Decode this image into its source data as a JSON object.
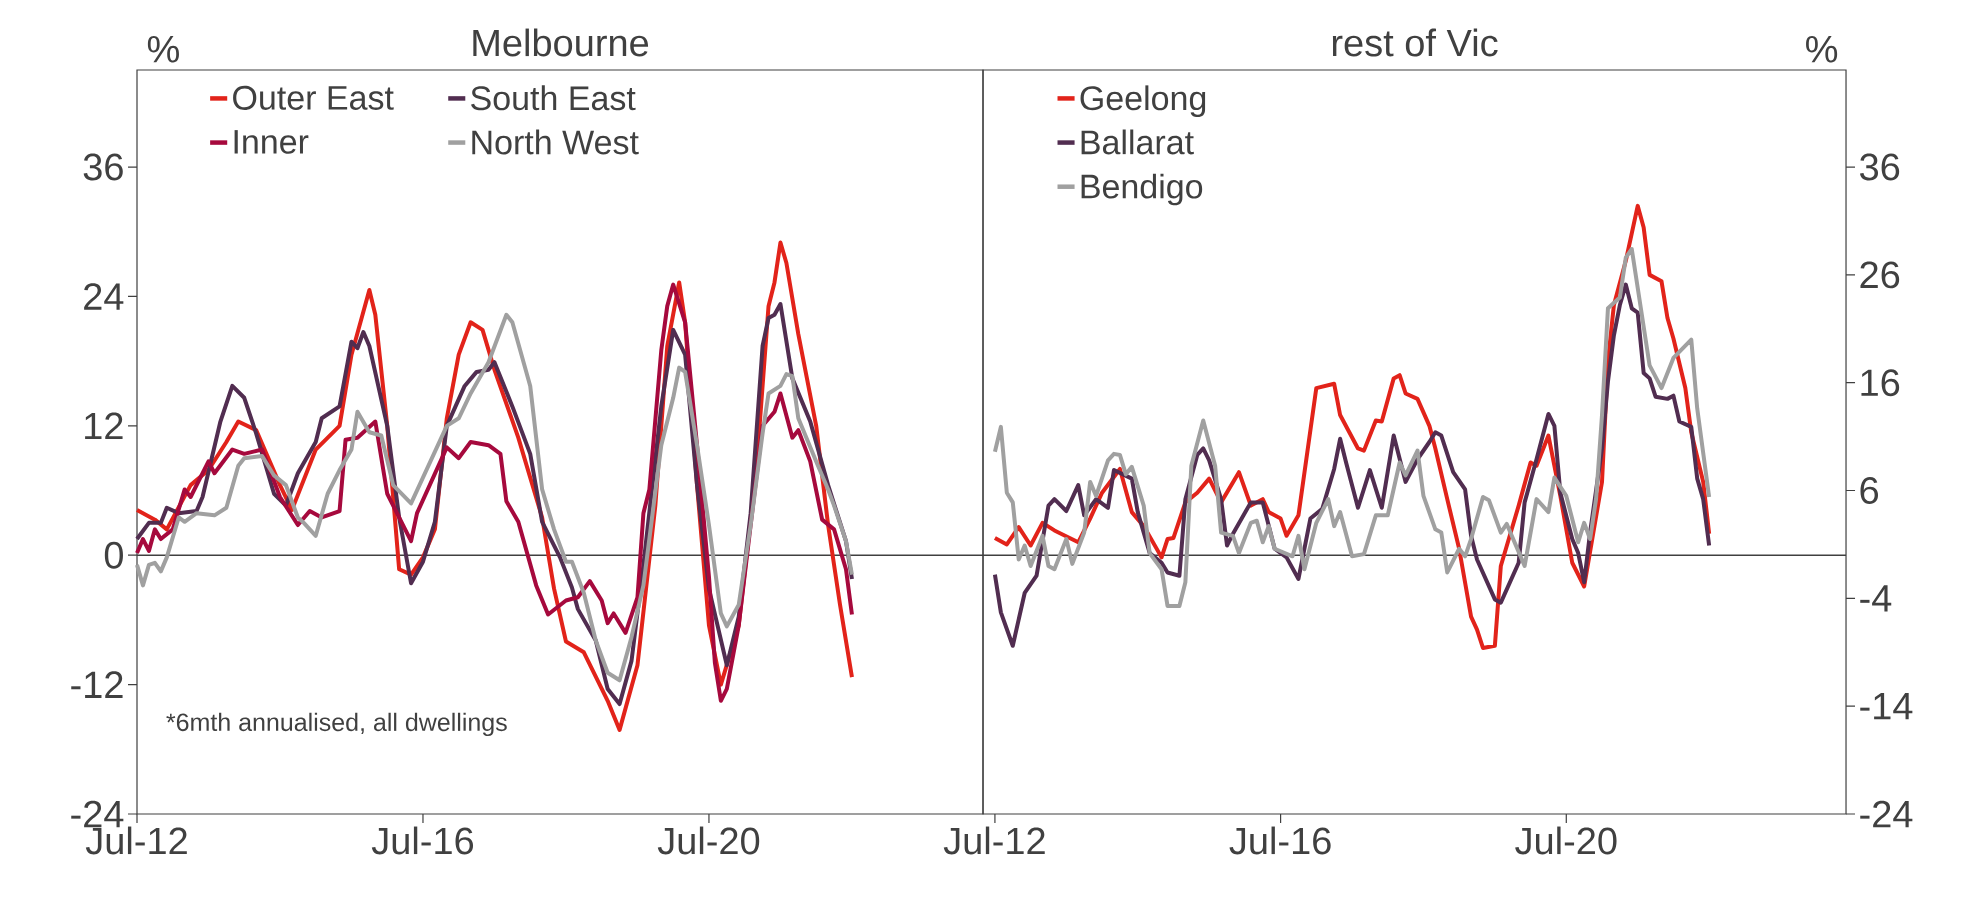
{
  "chart_data": [
    {
      "type": "line",
      "title": "Melbourne",
      "ylabel": "%",
      "marker": "none",
      "legend": "top left",
      "xlim": [
        "2012-07",
        "2024-05"
      ],
      "ylim": [
        -24,
        45
      ],
      "xticks": [
        {
          "value": "2012-07",
          "label": "Jul-12"
        },
        {
          "value": "2016-07",
          "label": "Jul-16"
        },
        {
          "value": "2020-07",
          "label": "Jul-20"
        }
      ],
      "yticks": [
        -24,
        -12,
        0,
        12,
        24,
        36
      ],
      "ref_lines": [
        {
          "axis": "y",
          "value": 0,
          "color": "#404040"
        }
      ],
      "annotations": [
        "*6mth annualised, all dwellings"
      ],
      "series": [
        {
          "name": "Outer East",
          "color": "#e2231a",
          "x": [
            "2012-07",
            "2012-10",
            "2012-12",
            "2013-04",
            "2013-07",
            "2013-10",
            "2013-12",
            "2014-03",
            "2014-07",
            "2014-09",
            "2015-01",
            "2015-05",
            "2015-07",
            "2015-10",
            "2015-11",
            "2016-01",
            "2016-03",
            "2016-05",
            "2016-07",
            "2016-09",
            "2016-11",
            "2017-01",
            "2017-03",
            "2017-05",
            "2017-07",
            "2017-11",
            "2018-03",
            "2018-05",
            "2018-07",
            "2018-10",
            "2019-02",
            "2019-04",
            "2019-07",
            "2019-10",
            "2019-12",
            "2020-02",
            "2020-03",
            "2020-05",
            "2020-07",
            "2020-09",
            "2020-12",
            "2021-03",
            "2021-05",
            "2021-06",
            "2021-07",
            "2021-08",
            "2021-10",
            "2022-01",
            "2022-03",
            "2022-05",
            "2022-07"
          ],
          "values": [
            4.2,
            3.3,
            2.4,
            6.5,
            7.9,
            10.5,
            12.4,
            11.6,
            6.5,
            4.2,
            9.8,
            12,
            18.6,
            24.6,
            22.3,
            12,
            -1.3,
            -1.8,
            -0.2,
            2.4,
            12.7,
            18.6,
            21.6,
            20.9,
            17.2,
            10.9,
            3.5,
            -3.1,
            -8,
            -9,
            -13.5,
            -16.2,
            -10.2,
            4.6,
            19.4,
            25.3,
            21.6,
            6.5,
            -6.5,
            -12,
            -6.5,
            8.3,
            23.1,
            25.3,
            29,
            27.1,
            20.5,
            12,
            2.8,
            -4.6,
            -11.3
          ]
        },
        {
          "name": "South East",
          "color": "#512d50",
          "x": [
            "2012-07",
            "2012-09",
            "2012-11",
            "2012-12",
            "2013-02",
            "2013-05",
            "2013-06",
            "2013-09",
            "2013-11",
            "2014-01",
            "2014-03",
            "2014-06",
            "2014-08",
            "2014-10",
            "2015-01",
            "2015-02",
            "2015-05",
            "2015-07",
            "2015-08",
            "2015-09",
            "2015-10",
            "2016-01",
            "2016-03",
            "2016-05",
            "2016-07",
            "2016-09",
            "2016-11",
            "2017-02",
            "2017-04",
            "2017-06",
            "2017-07",
            "2017-10",
            "2018-01",
            "2018-03",
            "2018-06",
            "2018-08",
            "2018-09",
            "2018-12",
            "2019-02",
            "2019-04",
            "2019-06",
            "2019-08",
            "2019-11",
            "2020-01",
            "2020-03",
            "2020-05",
            "2020-07",
            "2020-10",
            "2020-12",
            "2021-02",
            "2021-04",
            "2021-05",
            "2021-06",
            "2021-07",
            "2021-09",
            "2021-12",
            "2022-03",
            "2022-06",
            "2022-07"
          ],
          "values": [
            1.5,
            3,
            3,
            4.4,
            3.9,
            4.1,
            5.4,
            12.4,
            15.7,
            14.6,
            11.3,
            5.7,
            4.6,
            7.6,
            10.5,
            12.7,
            13.8,
            19.8,
            19.2,
            20.7,
            19.4,
            12,
            3.5,
            -2.6,
            -0.6,
            3.1,
            12,
            15.7,
            17,
            17.2,
            17.9,
            13.8,
            9.4,
            3.1,
            -0.2,
            -3,
            -5,
            -7.9,
            -12.4,
            -13.8,
            -9.8,
            -0.9,
            13.8,
            20.9,
            18.6,
            6.5,
            -3.1,
            -10.2,
            -5.7,
            3.9,
            19.4,
            22,
            22.3,
            23.3,
            16.4,
            12.4,
            6.5,
            1.3,
            -2.2
          ]
        },
        {
          "name": "Inner",
          "color": "#a6093d",
          "x": [
            "2012-07",
            "2012-08",
            "2012-09",
            "2012-10",
            "2012-11",
            "2013-01",
            "2013-03",
            "2013-04",
            "2013-07",
            "2013-08",
            "2013-11",
            "2014-01",
            "2014-04",
            "2014-07",
            "2014-10",
            "2014-12",
            "2015-02",
            "2015-05",
            "2015-06",
            "2015-08",
            "2015-11",
            "2016-01",
            "2016-02",
            "2016-05",
            "2016-06",
            "2016-11",
            "2017-01",
            "2017-03",
            "2017-06",
            "2017-08",
            "2017-09",
            "2017-11",
            "2018-02",
            "2018-04",
            "2018-07",
            "2018-09",
            "2018-11",
            "2019-01",
            "2019-02",
            "2019-03",
            "2019-05",
            "2019-07",
            "2019-08",
            "2019-09",
            "2019-11",
            "2019-12",
            "2020-01",
            "2020-03",
            "2020-05",
            "2020-07",
            "2020-08",
            "2020-09",
            "2020-10",
            "2020-12",
            "2021-02",
            "2021-04",
            "2021-06",
            "2021-07",
            "2021-09",
            "2021-10",
            "2021-12",
            "2022-02",
            "2022-04",
            "2022-06",
            "2022-07"
          ],
          "values": [
            0.2,
            1.5,
            0.4,
            2.4,
            1.5,
            2.4,
            6.1,
            5.4,
            8.7,
            7.6,
            9.8,
            9.4,
            9.8,
            5.4,
            2.8,
            4.1,
            3.5,
            4.1,
            10.7,
            10.9,
            12.4,
            5.7,
            4.6,
            1.3,
            3.9,
            10,
            9,
            10.5,
            10.2,
            9.4,
            5,
            3.1,
            -2.8,
            -5.5,
            -4.2,
            -3.9,
            -2.4,
            -4.2,
            -6.3,
            -5.4,
            -7.2,
            -3.9,
            3.9,
            6.1,
            19,
            23.1,
            25.1,
            21.6,
            10.2,
            -2,
            -10,
            -13.5,
            -12.4,
            -6.5,
            2.8,
            12,
            13.3,
            15,
            10.9,
            11.6,
            8.7,
            3.3,
            2.4,
            -1.3,
            -5.5
          ]
        },
        {
          "name": "North West",
          "color": "#a0a0a0",
          "x": [
            "2012-07",
            "2012-08",
            "2012-09",
            "2012-10",
            "2012-11",
            "2012-12",
            "2013-02",
            "2013-03",
            "2013-05",
            "2013-08",
            "2013-10",
            "2013-12",
            "2014-01",
            "2014-04",
            "2014-06",
            "2014-08",
            "2014-10",
            "2014-11",
            "2015-01",
            "2015-03",
            "2015-05",
            "2015-07",
            "2015-08",
            "2015-10",
            "2015-12",
            "2016-02",
            "2016-05",
            "2016-07",
            "2016-11",
            "2017-01",
            "2017-03",
            "2017-06",
            "2017-09",
            "2017-10",
            "2018-01",
            "2018-03",
            "2018-05",
            "2018-07",
            "2018-08",
            "2018-10",
            "2018-12",
            "2019-02",
            "2019-04",
            "2019-06",
            "2019-08",
            "2019-11",
            "2020-01",
            "2020-02",
            "2020-03",
            "2020-05",
            "2020-07",
            "2020-09",
            "2020-10",
            "2020-12",
            "2021-02",
            "2021-04",
            "2021-05",
            "2021-07",
            "2021-08",
            "2021-09",
            "2021-10",
            "2022-01",
            "2022-03",
            "2022-04",
            "2022-06",
            "2022-07"
          ],
          "values": [
            -0.9,
            -2.8,
            -0.9,
            -0.7,
            -1.5,
            -0.2,
            3.5,
            3.1,
            3.9,
            3.7,
            4.4,
            8.3,
            9,
            9.2,
            7.4,
            6.5,
            3.5,
            3,
            1.8,
            5.7,
            7.9,
            9.8,
            13.3,
            11.4,
            11.1,
            6.5,
            4.8,
            7.2,
            12,
            12.7,
            15,
            17.9,
            22.3,
            21.6,
            15.7,
            6.1,
            2.4,
            -0.6,
            -0.6,
            -3.5,
            -7.9,
            -10.9,
            -11.6,
            -7.6,
            -2.8,
            10.2,
            14.6,
            17.4,
            17,
            10.2,
            2.8,
            -5.4,
            -6.6,
            -4.6,
            2.8,
            11.3,
            15,
            15.7,
            16.8,
            16.6,
            12.7,
            8.7,
            6.1,
            4.6,
            1.3,
            -1.8
          ]
        }
      ]
    },
    {
      "type": "line",
      "title": "rest of Vic",
      "y2label": "%",
      "marker": "none",
      "legend": "top left",
      "xlim": [
        "2012-05",
        "2024-06"
      ],
      "y2lim": [
        -24,
        45
      ],
      "xticks": [
        {
          "value": "2012-07",
          "label": "Jul-12"
        },
        {
          "value": "2016-07",
          "label": "Jul-16"
        },
        {
          "value": "2020-07",
          "label": "Jul-20"
        }
      ],
      "y2ticks": [
        -24,
        -14,
        -4,
        6,
        16,
        26,
        36
      ],
      "ref_lines": [
        {
          "axis": "y2",
          "value": 0,
          "color": "#404040"
        }
      ],
      "series": [
        {
          "name": "Geelong",
          "color": "#e2231a",
          "axis": "y2",
          "x": [
            "2012-07",
            "2012-09",
            "2012-11",
            "2013-01",
            "2013-03",
            "2013-05",
            "2013-09",
            "2013-11",
            "2014-01",
            "2014-04",
            "2014-06",
            "2014-08",
            "2014-11",
            "2014-12",
            "2015-01",
            "2015-03",
            "2015-05",
            "2015-07",
            "2015-09",
            "2015-12",
            "2016-02",
            "2016-04",
            "2016-05",
            "2016-07",
            "2016-08",
            "2016-10",
            "2017-01",
            "2017-04",
            "2017-05",
            "2017-08",
            "2017-09",
            "2017-11",
            "2017-12",
            "2018-02",
            "2018-03",
            "2018-04",
            "2018-06",
            "2018-08",
            "2018-09",
            "2018-11",
            "2019-01",
            "2019-03",
            "2019-04",
            "2019-05",
            "2019-07",
            "2019-08",
            "2019-11",
            "2020-01",
            "2020-02",
            "2020-04",
            "2020-06",
            "2020-08",
            "2020-10",
            "2021-01",
            "2021-02",
            "2021-03",
            "2021-05",
            "2021-07",
            "2021-08",
            "2021-09",
            "2021-11",
            "2021-12",
            "2022-01",
            "2022-03",
            "2022-04",
            "2022-06",
            "2022-07"
          ],
          "values": [
            1.6,
            1,
            2.6,
            0.9,
            3,
            2.3,
            1.2,
            3.4,
            5.8,
            8,
            4,
            2.7,
            -0.2,
            1.5,
            1.6,
            4.9,
            5.8,
            7.1,
            4.9,
            7.7,
            4.6,
            5.2,
            4,
            3.4,
            1.8,
            3.7,
            15.5,
            15.9,
            13,
            9.9,
            9.7,
            12.5,
            12.4,
            16.4,
            16.7,
            15,
            14.5,
            12,
            9.9,
            5.2,
            0.6,
            -5.7,
            -6.9,
            -8.6,
            -8.4,
            -1,
            4.6,
            8.6,
            8.3,
            11.1,
            5.5,
            -0.7,
            -2.9,
            6.8,
            18,
            23.2,
            27.3,
            32.4,
            30.4,
            26,
            25.4,
            22,
            20.1,
            15.5,
            11.4,
            6.8,
            2
          ]
        },
        {
          "name": "Ballarat",
          "color": "#512d50",
          "axis": "y2",
          "x": [
            "2012-07",
            "2012-08",
            "2012-10",
            "2012-12",
            "2013-02",
            "2013-04",
            "2013-05",
            "2013-07",
            "2013-09",
            "2013-10",
            "2013-12",
            "2014-02",
            "2014-03",
            "2014-06",
            "2014-07",
            "2014-09",
            "2014-11",
            "2014-12",
            "2015-02",
            "2015-03",
            "2015-05",
            "2015-06",
            "2015-07",
            "2015-09",
            "2015-10",
            "2015-11",
            "2016-02",
            "2016-04",
            "2016-06",
            "2016-08",
            "2016-10",
            "2016-12",
            "2017-02",
            "2017-04",
            "2017-05",
            "2017-06",
            "2017-08",
            "2017-10",
            "2017-12",
            "2018-02",
            "2018-04",
            "2018-06",
            "2018-08",
            "2018-09",
            "2018-10",
            "2018-12",
            "2019-02",
            "2019-03",
            "2019-04",
            "2019-07",
            "2019-08",
            "2019-11",
            "2019-12",
            "2020-02",
            "2020-04",
            "2020-05",
            "2020-06",
            "2020-08",
            "2020-09",
            "2020-10",
            "2020-11",
            "2021-01",
            "2021-02",
            "2021-03",
            "2021-04",
            "2021-05",
            "2021-06",
            "2021-07",
            "2021-08",
            "2021-09",
            "2021-10",
            "2021-12",
            "2022-01",
            "2022-02",
            "2022-04",
            "2022-05",
            "2022-06",
            "2022-07"
          ],
          "values": [
            -1.8,
            -5.3,
            -8.4,
            -3.5,
            -1.9,
            4.6,
            5.2,
            4.1,
            6.5,
            3.7,
            5.2,
            4.4,
            7.9,
            7.1,
            4,
            0.2,
            -0.7,
            -1.6,
            -1.9,
            5.2,
            9.3,
            9.9,
            8.8,
            5.2,
            0.9,
            2,
            4.9,
            4.9,
            0.6,
            -0.2,
            -2.2,
            3.4,
            4.3,
            8,
            10.8,
            8.6,
            4.4,
            7.9,
            4.4,
            11.1,
            6.8,
            8.9,
            10.5,
            11.4,
            11.1,
            7.7,
            6.1,
            1.8,
            -0.4,
            -4.1,
            -4.4,
            -0.7,
            4.9,
            8.9,
            13.1,
            12,
            5.8,
            1.5,
            0.2,
            -2.5,
            2.1,
            9.9,
            16.1,
            20.4,
            23.2,
            25.1,
            22.9,
            22.5,
            16.9,
            16.4,
            14.7,
            14.5,
            14.8,
            12.4,
            11.9,
            7.1,
            5.2,
            0.9
          ]
        },
        {
          "name": "Bendigo",
          "color": "#a0a0a0",
          "axis": "y2",
          "x": [
            "2012-07",
            "2012-08",
            "2012-09",
            "2012-10",
            "2012-11",
            "2012-12",
            "2013-01",
            "2013-03",
            "2013-04",
            "2013-05",
            "2013-07",
            "2013-08",
            "2013-10",
            "2013-11",
            "2013-12",
            "2014-02",
            "2014-03",
            "2014-04",
            "2014-05",
            "2014-06",
            "2014-08",
            "2014-09",
            "2014-11",
            "2014-12",
            "2015-02",
            "2015-03",
            "2015-04",
            "2015-06",
            "2015-08",
            "2015-09",
            "2015-11",
            "2015-12",
            "2016-02",
            "2016-03",
            "2016-04",
            "2016-05",
            "2016-06",
            "2016-09",
            "2016-10",
            "2016-11",
            "2017-01",
            "2017-03",
            "2017-04",
            "2017-05",
            "2017-07",
            "2017-09",
            "2017-11",
            "2018-01",
            "2018-03",
            "2018-04",
            "2018-06",
            "2018-07",
            "2018-09",
            "2018-10",
            "2018-11",
            "2019-01",
            "2019-02",
            "2019-03",
            "2019-05",
            "2019-06",
            "2019-08",
            "2019-09",
            "2019-12",
            "2020-01",
            "2020-02",
            "2020-04",
            "2020-05",
            "2020-07",
            "2020-09",
            "2020-10",
            "2020-11",
            "2020-12",
            "2021-01",
            "2021-02",
            "2021-04",
            "2021-05",
            "2021-06",
            "2021-07",
            "2021-09",
            "2021-11",
            "2022-01",
            "2022-04",
            "2022-05",
            "2022-07"
          ],
          "values": [
            9.6,
            11.9,
            5.8,
            4.9,
            -0.4,
            0.9,
            -1,
            1.8,
            -1,
            -1.3,
            1.5,
            -0.8,
            2.1,
            6.8,
            5.5,
            8.8,
            9.4,
            9.3,
            7.5,
            8.2,
            4.6,
            0.2,
            -1.3,
            -4.7,
            -4.7,
            -2.5,
            8.3,
            12.5,
            8.3,
            2.1,
            1.8,
            0.2,
            3,
            3.2,
            1.2,
            2.7,
            0.6,
            -0.1,
            1.8,
            -1.3,
            3,
            5.2,
            2.7,
            4,
            -0.1,
            0.1,
            3.7,
            3.7,
            8.6,
            7.4,
            9.7,
            5.5,
            2.4,
            2.1,
            -1.6,
            0.6,
            -0.1,
            1.5,
            5.4,
            5.1,
            2.1,
            2.9,
            -1,
            2.1,
            5.2,
            4,
            7.2,
            5.5,
            1.2,
            3,
            1.5,
            5.2,
            13,
            22.9,
            23.9,
            27.6,
            28.4,
            24.8,
            17.6,
            15.5,
            18.3,
            20,
            13.6,
            5.4
          ]
        }
      ]
    }
  ]
}
